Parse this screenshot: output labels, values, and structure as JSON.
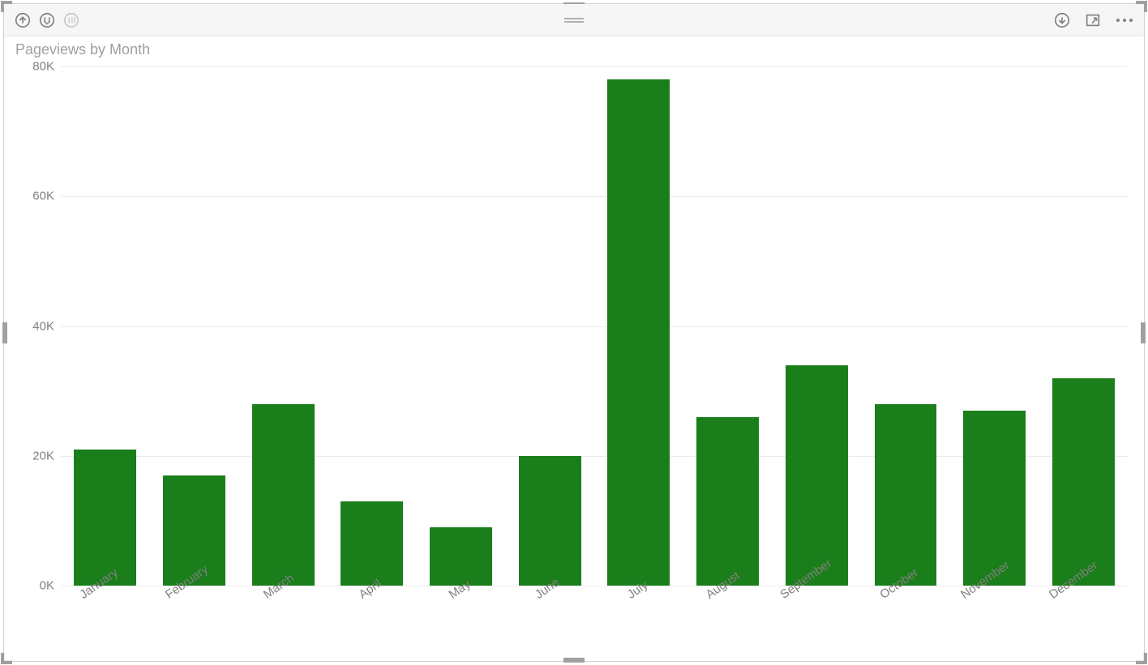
{
  "title": "Pageviews by Month",
  "chart": {
    "type": "bar",
    "categories": [
      "January",
      "February",
      "March",
      "April",
      "May",
      "June",
      "July",
      "August",
      "September",
      "October",
      "November",
      "December"
    ],
    "values": [
      21000,
      17000,
      28000,
      13000,
      9000,
      20000,
      78000,
      26000,
      34000,
      28000,
      27000,
      32000
    ],
    "bar_color": "#1a7e1a",
    "bar_width": 0.7,
    "background_color": "#ffffff",
    "grid_color": "#ececec",
    "ymin": 0,
    "ymax": 80000,
    "ytick_step": 20000,
    "ytick_labels": [
      "0K",
      "20K",
      "40K",
      "60K",
      "80K"
    ],
    "title_color": "#a0a0a0",
    "title_fontsize": 18,
    "axis_label_color": "#808080",
    "axis_label_fontsize": 15,
    "x_label_rotation_deg": -35
  },
  "toolbar": {
    "drill_up": "Drill up",
    "drill_down": "Drill down",
    "expand": "Expand",
    "export": "Export",
    "focus": "Focus mode",
    "more": "More options"
  }
}
